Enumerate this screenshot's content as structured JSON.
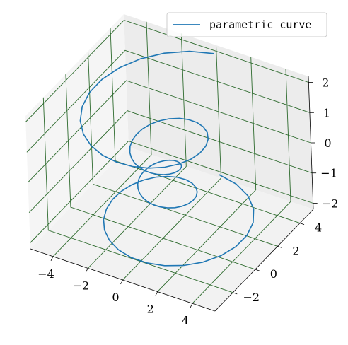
{
  "chart_data": {
    "type": "line",
    "projection": "3d",
    "title": "",
    "legend": {
      "placement": "top-right",
      "entries": [
        "parametric curve"
      ]
    },
    "series": [
      {
        "name": "parametric curve",
        "color": "#1f77b4",
        "equation": "theta in [-4pi, 4pi], z in [-2, 2], r = z^2 + 1, x = r*sin(theta), y = r*cos(theta)",
        "theta_range": [
          -12.566,
          12.566
        ],
        "z_range": [
          -2,
          2
        ],
        "samples": 100
      }
    ],
    "axes": {
      "x": {
        "lim": [
          -5.3,
          5.3
        ],
        "ticks": [
          -4,
          -2,
          0,
          2,
          4
        ]
      },
      "y": {
        "lim": [
          -3.6,
          5.2
        ],
        "ticks": [
          -2,
          0,
          2,
          4
        ]
      },
      "z": {
        "lim": [
          -2.2,
          2.2
        ],
        "ticks": [
          -2,
          -1,
          0,
          1,
          2
        ]
      }
    },
    "grid": true,
    "grid_color": "#2e6b2e",
    "pane_color": "#f2f2f2",
    "tick_labels": {
      "x": [
        "−4",
        "−2",
        "0",
        "2",
        "4"
      ],
      "y": [
        "−2",
        "0",
        "2",
        "4"
      ],
      "z": [
        "−2",
        "−1",
        "0",
        "1",
        "2"
      ]
    }
  }
}
